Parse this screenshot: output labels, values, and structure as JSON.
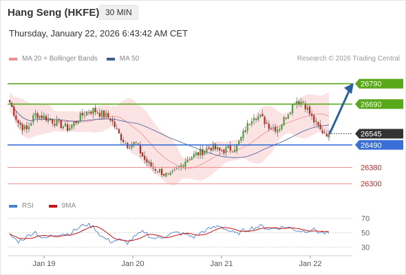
{
  "header": {
    "title": "Hang Seng (HKFE)",
    "timeframe": "30 MIN",
    "datetime": "Thursday, January 22, 2026 6:43:42 AM CET",
    "credit": "Research © 2026 Trading Central"
  },
  "colors": {
    "resistance": "#58a81a",
    "support": "#f08c8c",
    "pivot": "#3a6fd8",
    "price_tag": "#333333",
    "arrow": "#2a5fa8",
    "bollinger": "#fbd9d9",
    "ma20": "#f08c8c",
    "ma50": "#3a5a99",
    "bull": "#41a13a",
    "bear": "#c0241f",
    "rsi": "#4a7fd8",
    "rsi_ma": "#cc1111"
  },
  "chart_data": [
    {
      "type": "candlestick",
      "title": "Hang Seng (HKFE)",
      "timeframe": "30 MIN",
      "x_ticks": [
        "Jan 19",
        "Jan 20",
        "Jan 21",
        "Jan 22"
      ],
      "ylim": [
        26240,
        26880
      ],
      "legend": [
        "MA 20 + Bollinger Bands",
        "MA 50"
      ],
      "legend_position": "top-left",
      "close_path": [
        26700,
        26600,
        26560,
        26640,
        26630,
        26610,
        26590,
        26570,
        26610,
        26650,
        26660,
        26640,
        26620,
        26540,
        26490,
        26500,
        26420,
        26380,
        26360,
        26330,
        26370,
        26420,
        26440,
        26460,
        26480,
        26460,
        26470,
        26480,
        26560,
        26640,
        26620,
        26580,
        26570,
        26640,
        26710,
        26700,
        26620,
        26560,
        26545
      ],
      "levels": [
        {
          "label": "26790",
          "value": 26790,
          "kind": "resistance"
        },
        {
          "label": "26690",
          "value": 26690,
          "kind": "resistance"
        },
        {
          "label": "26490",
          "value": 26490,
          "kind": "pivot"
        },
        {
          "label": "26380",
          "value": 26380,
          "kind": "support"
        },
        {
          "label": "26300",
          "value": 26300,
          "kind": "support"
        }
      ],
      "last_price": {
        "label": "26545",
        "value": 26545
      },
      "forecast_target": 26790
    },
    {
      "type": "line",
      "title": "RSI",
      "x_ticks": [
        "Jan 19",
        "Jan 20",
        "Jan 21",
        "Jan 22"
      ],
      "ylim": [
        20,
        80
      ],
      "y_ticks": [
        "70",
        "50",
        "30"
      ],
      "legend": [
        "RSI",
        "9MA"
      ],
      "legend_position": "top-left",
      "rsi_path": [
        47,
        38,
        44,
        52,
        41,
        46,
        49,
        48,
        55,
        62,
        58,
        44,
        38,
        40,
        36,
        45,
        52,
        42,
        43,
        48,
        50,
        47,
        44,
        52,
        56,
        60,
        53,
        48,
        54,
        57,
        59,
        55,
        57,
        58,
        54,
        52,
        55,
        50,
        49
      ]
    }
  ]
}
